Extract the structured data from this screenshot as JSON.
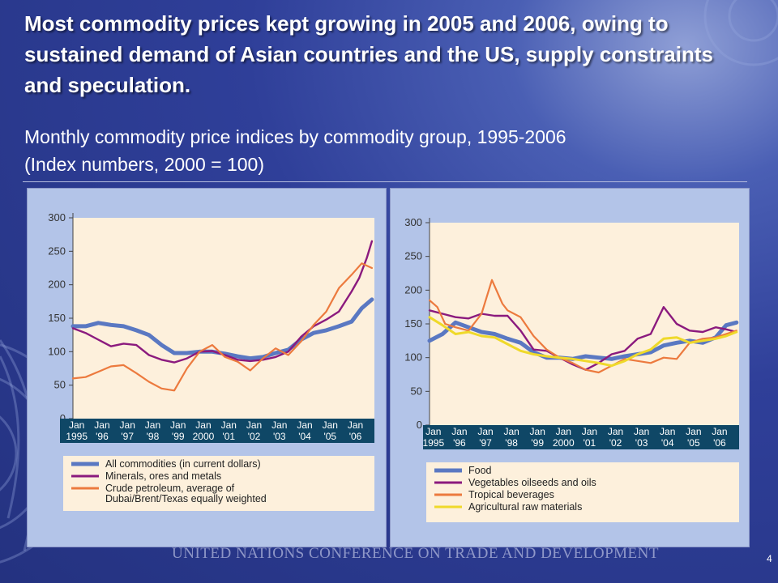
{
  "title": "Most commodity prices kept growing in 2005 and 2006, owing to sustained demand of Asian countries and the US, supply constraints and speculation.",
  "subtitle_line1": "Monthly commodity price indices by commodity group, 1995-2006",
  "subtitle_line2": "(Index numbers, 2000 = 100)",
  "footer": "UNITED NATIONS CONFERENCE ON TRADE AND DEVELOPMENT",
  "page_number": "4",
  "colors": {
    "blue": "#5a78c2",
    "purple": "#8b1a7e",
    "orange": "#ec7a3e",
    "yellow": "#efd92a",
    "axis_band": "#0f4766",
    "plot_bg": "#fdf0dc"
  },
  "chart_data": [
    {
      "type": "line",
      "ylim": [
        0,
        300
      ],
      "yticks": [
        "0",
        "50",
        "100",
        "150",
        "200",
        "250",
        "300"
      ],
      "xlim": [
        1995,
        2006.9
      ],
      "xtick_top": [
        "Jan",
        "Jan",
        "Jan",
        "Jan",
        "Jan",
        "Jan",
        "Jan",
        "Jan",
        "Jan",
        "Jan",
        "Jan",
        "Jan"
      ],
      "xtick_bottom": [
        "1995",
        "'96",
        "'97",
        "'98",
        "'99",
        "2000",
        "'01",
        "'02",
        "'03",
        "'04",
        "'05",
        "'06"
      ],
      "series": [
        {
          "name": "All commodities (in current dollars)",
          "color": "blue",
          "x": [
            1995,
            1995.5,
            1996,
            1996.5,
            1997,
            1997.5,
            1998,
            1998.5,
            1999,
            1999.5,
            2000,
            2000.5,
            2001,
            2001.5,
            2002,
            2002.5,
            2003,
            2003.5,
            2004,
            2004.5,
            2005,
            2005.5,
            2006,
            2006.4,
            2006.8
          ],
          "y": [
            138,
            138,
            143,
            140,
            138,
            132,
            125,
            110,
            98,
            98,
            100,
            100,
            97,
            93,
            90,
            92,
            98,
            103,
            118,
            128,
            132,
            138,
            145,
            165,
            178
          ]
        },
        {
          "name": "Minerals, ores and metals",
          "color": "purple",
          "x": [
            1995,
            1995.5,
            1996,
            1996.5,
            1997,
            1997.5,
            1998,
            1998.5,
            1999,
            1999.5,
            2000,
            2000.5,
            2001,
            2001.5,
            2002,
            2002.5,
            2003,
            2003.5,
            2004,
            2004.5,
            2005,
            2005.5,
            2006,
            2006.3,
            2006.6,
            2006.8
          ],
          "y": [
            135,
            128,
            118,
            108,
            112,
            110,
            95,
            88,
            84,
            90,
            100,
            101,
            95,
            88,
            86,
            88,
            92,
            100,
            122,
            138,
            148,
            160,
            190,
            210,
            240,
            265
          ]
        },
        {
          "name": "Crude petroleum, average of Dubai/Brent/Texas equally weighted",
          "color": "orange",
          "x": [
            1995,
            1995.5,
            1996,
            1996.5,
            1997,
            1997.5,
            1998,
            1998.5,
            1999,
            1999.5,
            2000,
            2000.5,
            2001,
            2001.5,
            2002,
            2002.5,
            2003,
            2003.5,
            2004,
            2004.5,
            2005,
            2005.5,
            2006,
            2006.4,
            2006.8
          ],
          "y": [
            60,
            62,
            70,
            78,
            80,
            68,
            55,
            45,
            42,
            75,
            100,
            110,
            92,
            85,
            72,
            90,
            105,
            95,
            115,
            140,
            160,
            195,
            215,
            232,
            225
          ]
        }
      ]
    },
    {
      "type": "line",
      "ylim": [
        0,
        300
      ],
      "yticks": [
        "0",
        "50",
        "100",
        "150",
        "200",
        "250",
        "300"
      ],
      "xlim": [
        1995,
        2006.9
      ],
      "xtick_top": [
        "Jan",
        "Jan",
        "Jan",
        "Jan",
        "Jan",
        "Jan",
        "Jan",
        "Jan",
        "Jan",
        "Jan",
        "Jan",
        "Jan"
      ],
      "xtick_bottom": [
        "1995",
        "'96",
        "'97",
        "'98",
        "'99",
        "2000",
        "'01",
        "'02",
        "'03",
        "'04",
        "'05",
        "'06"
      ],
      "series": [
        {
          "name": "Food",
          "color": "blue",
          "x": [
            1995,
            1995.5,
            1996,
            1996.5,
            1997,
            1997.5,
            1998,
            1998.5,
            1999,
            1999.5,
            2000,
            2000.5,
            2001,
            2001.5,
            2002,
            2002.5,
            2003,
            2003.5,
            2004,
            2004.5,
            2005,
            2005.5,
            2006,
            2006.4,
            2006.8
          ],
          "y": [
            125,
            135,
            152,
            145,
            138,
            135,
            128,
            122,
            108,
            100,
            100,
            98,
            102,
            100,
            98,
            102,
            105,
            108,
            118,
            122,
            125,
            122,
            130,
            148,
            152
          ]
        },
        {
          "name": "Vegetables oilseeds and oils",
          "color": "purple",
          "x": [
            1995,
            1995.5,
            1996,
            1996.5,
            1997,
            1997.5,
            1998,
            1998.5,
            1999,
            1999.5,
            2000,
            2000.5,
            2001,
            2001.5,
            2002,
            2002.5,
            2003,
            2003.5,
            2004,
            2004.5,
            2005,
            2005.5,
            2006,
            2006.4,
            2006.8
          ],
          "y": [
            170,
            165,
            160,
            158,
            165,
            162,
            162,
            140,
            112,
            110,
            100,
            90,
            82,
            92,
            105,
            110,
            128,
            135,
            175,
            150,
            140,
            138,
            145,
            142,
            138
          ]
        },
        {
          "name": "Tropical beverages",
          "color": "orange",
          "x": [
            1995,
            1995.3,
            1995.6,
            1996,
            1996.5,
            1997,
            1997.4,
            1997.8,
            1998,
            1998.5,
            1999,
            1999.5,
            2000,
            2000.5,
            2001,
            2001.5,
            2002,
            2002.5,
            2003,
            2003.5,
            2004,
            2004.5,
            2005,
            2005.5,
            2006,
            2006.4,
            2006.8
          ],
          "y": [
            185,
            175,
            150,
            145,
            140,
            165,
            215,
            180,
            170,
            160,
            132,
            112,
            100,
            92,
            82,
            78,
            88,
            98,
            95,
            92,
            100,
            98,
            122,
            128,
            130,
            135,
            140
          ]
        },
        {
          "name": "Agricultural raw materials",
          "color": "yellow",
          "x": [
            1995,
            1995.5,
            1996,
            1996.5,
            1997,
            1997.5,
            1998,
            1998.5,
            1999,
            1999.5,
            2000,
            2000.5,
            2001,
            2001.5,
            2002,
            2002.5,
            2003,
            2003.5,
            2004,
            2004.5,
            2005,
            2005.5,
            2006,
            2006.4,
            2006.8
          ],
          "y": [
            160,
            148,
            135,
            138,
            132,
            130,
            120,
            110,
            105,
            102,
            100,
            98,
            95,
            92,
            88,
            95,
            105,
            112,
            128,
            130,
            122,
            125,
            128,
            132,
            138
          ]
        }
      ]
    }
  ]
}
